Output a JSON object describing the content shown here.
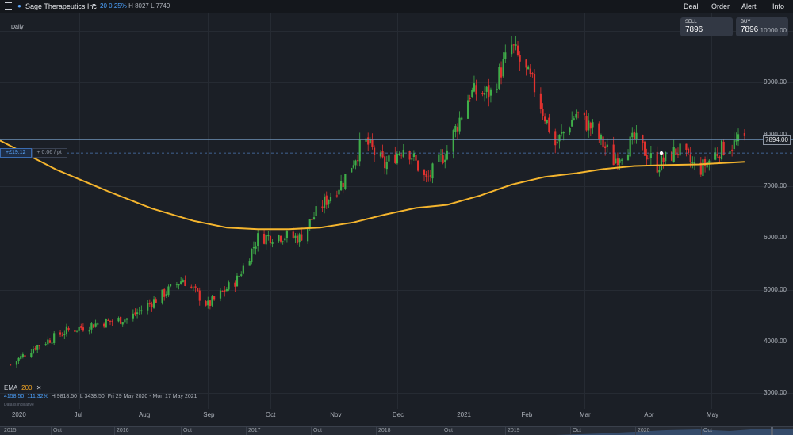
{
  "header": {
    "instrument_name": "Sage Therapeutics Inc",
    "change": "20",
    "change_pct": "0.25%",
    "high": "H 8027",
    "low": "L 7749"
  },
  "nav": {
    "deal": "Deal",
    "order": "Order",
    "alert": "Alert",
    "info": "Info"
  },
  "quotes": {
    "sell_label": "SELL",
    "sell_value": "7896",
    "buy_label": "BUY",
    "buy_value": "7896"
  },
  "chart": {
    "interval": "Daily",
    "current_price_tag": "7894.00",
    "position_pl": "+£19.12",
    "position_per_point": "+ 0.06 / pt",
    "indicator_name": "EMA",
    "indicator_period": "200",
    "indicator_close": "✕",
    "range_start": "4158.50",
    "range_change": "111.32%",
    "range_high": "H 9818.50",
    "range_low": "L 3438.50",
    "range_dates": "Fri 29 May 2020 - Mon 17 May 2021",
    "disclaimer": "Data is indicative",
    "colors": {
      "up": "#3fae49",
      "down": "#e2322f",
      "ema": "#f5b52e",
      "background": "#1b1f26"
    }
  },
  "chart_data": {
    "type": "candlestick",
    "title": "",
    "y_tick_labels": [
      "10000.00",
      "9000.00",
      "8000.00",
      "7000.00",
      "6000.00",
      "5000.00",
      "4000.00",
      "3000.00"
    ],
    "x_tick_labels": [
      "2020",
      "Jul",
      "Aug",
      "Sep",
      "Oct",
      "Nov",
      "Dec",
      "2021",
      "Feb",
      "Mar",
      "Apr",
      "May"
    ],
    "ylim": [
      2700,
      10350
    ],
    "grid": true,
    "series": [
      {
        "name": "EMA",
        "type": "line",
        "x": [
          "2020-05-29",
          "2020-06-20",
          "2020-07-15",
          "2020-08-05",
          "2020-08-25",
          "2020-09-10",
          "2020-09-25",
          "2020-10-10",
          "2020-10-25",
          "2020-11-10",
          "2020-11-25",
          "2020-12-10",
          "2020-12-25",
          "2021-01-10",
          "2021-01-25",
          "2021-02-10",
          "2021-02-25",
          "2021-03-10",
          "2021-03-25",
          "2021-04-10",
          "2021-04-25",
          "2021-05-17"
        ],
        "values": [
          7880,
          7320,
          6900,
          6570,
          6330,
          6200,
          6170,
          6170,
          6200,
          6300,
          6450,
          6580,
          6640,
          6820,
          7030,
          7180,
          7250,
          7330,
          7390,
          7410,
          7420,
          7470
        ]
      }
    ],
    "ohlc_approx_close": {
      "x": [
        "2020-05-29",
        "2020-06-10",
        "2020-06-25",
        "2020-07-10",
        "2020-07-25",
        "2020-08-10",
        "2020-08-20",
        "2020-09-01",
        "2020-09-15",
        "2020-09-25",
        "2020-10-05",
        "2020-10-15",
        "2020-10-25",
        "2020-11-05",
        "2020-11-15",
        "2020-11-25",
        "2020-12-05",
        "2020-12-15",
        "2020-12-25",
        "2021-01-05",
        "2021-01-15",
        "2021-01-25",
        "2021-02-05",
        "2021-02-15",
        "2021-02-25",
        "2021-03-05",
        "2021-03-15",
        "2021-03-25",
        "2021-04-05",
        "2021-04-15",
        "2021-04-25",
        "2021-05-05",
        "2021-05-17"
      ],
      "values": [
        3550,
        3900,
        4200,
        4350,
        4450,
        4900,
        5200,
        4700,
        5200,
        6000,
        6050,
        6000,
        6600,
        7100,
        7900,
        7400,
        7800,
        7100,
        7700,
        8800,
        8800,
        9700,
        8900,
        7800,
        8400,
        8100,
        7500,
        7900,
        7400,
        7700,
        7300,
        7700,
        7894
      ]
    }
  },
  "navigator": {
    "labels": [
      "2015",
      "Oct",
      "2016",
      "Oct",
      "2017",
      "Oct",
      "2018",
      "Oct",
      "2019",
      "Oct",
      "2020",
      "Oct"
    ]
  }
}
